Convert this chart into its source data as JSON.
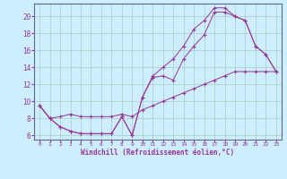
{
  "xlabel": "Windchill (Refroidissement éolien,°C)",
  "bg_color": "#cceeff",
  "grid_color": "#aaccbb",
  "line_color": "#993399",
  "spine_color": "#666688",
  "xlim": [
    -0.5,
    23.5
  ],
  "ylim": [
    5.5,
    21.5
  ],
  "yticks": [
    6,
    8,
    10,
    12,
    14,
    16,
    18,
    20
  ],
  "xticks": [
    0,
    1,
    2,
    3,
    4,
    5,
    6,
    7,
    8,
    9,
    10,
    11,
    12,
    13,
    14,
    15,
    16,
    17,
    18,
    19,
    20,
    21,
    22,
    23
  ],
  "series1_x": [
    0,
    1,
    2,
    3,
    4,
    5,
    6,
    7,
    8,
    9,
    10,
    11,
    12,
    13,
    14,
    15,
    16,
    17,
    18,
    19,
    20,
    21,
    22,
    23
  ],
  "series1_y": [
    9.5,
    8.0,
    7.0,
    6.5,
    6.2,
    6.2,
    6.2,
    6.2,
    8.2,
    6.0,
    10.5,
    13.0,
    14.0,
    15.0,
    16.5,
    18.5,
    19.5,
    21.0,
    21.0,
    20.0,
    19.5,
    16.5,
    15.5,
    13.5
  ],
  "series2_x": [
    0,
    1,
    2,
    3,
    4,
    5,
    6,
    7,
    8,
    9,
    10,
    11,
    12,
    13,
    14,
    15,
    16,
    17,
    18,
    19,
    20,
    21,
    22,
    23
  ],
  "series2_y": [
    9.5,
    8.0,
    7.0,
    6.5,
    6.2,
    6.2,
    6.2,
    6.2,
    8.2,
    6.0,
    10.5,
    12.8,
    13.0,
    12.5,
    15.0,
    16.5,
    17.8,
    20.5,
    20.5,
    20.0,
    19.5,
    16.5,
    15.5,
    13.5
  ],
  "series3_x": [
    0,
    1,
    2,
    3,
    4,
    5,
    6,
    7,
    8,
    9,
    10,
    11,
    12,
    13,
    14,
    15,
    16,
    17,
    18,
    19,
    20,
    21,
    22,
    23
  ],
  "series3_y": [
    9.5,
    8.0,
    8.2,
    8.5,
    8.2,
    8.2,
    8.2,
    8.2,
    8.5,
    8.2,
    9.0,
    9.5,
    10.0,
    10.5,
    11.0,
    11.5,
    12.0,
    12.5,
    13.0,
    13.5,
    13.5,
    13.5,
    13.5,
    13.5
  ]
}
